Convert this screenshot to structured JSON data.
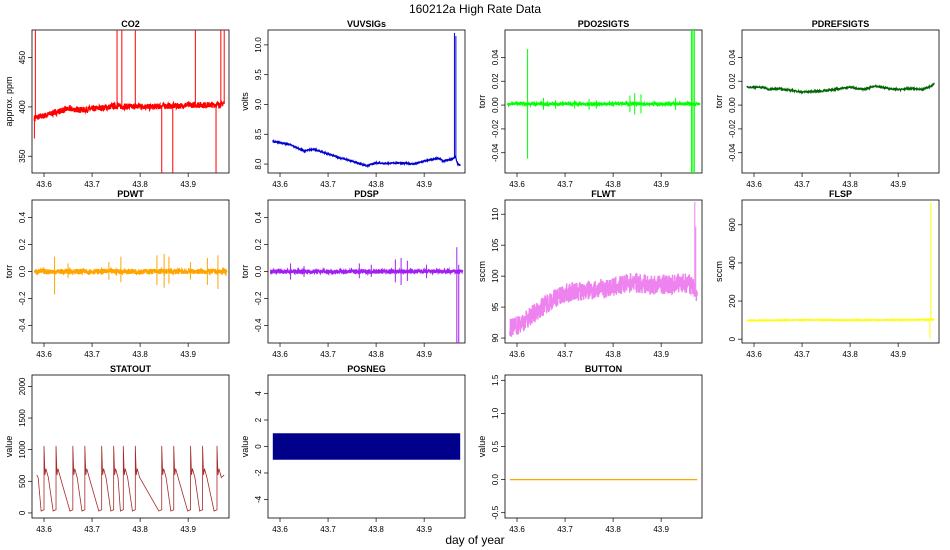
{
  "figure": {
    "title": "160212a   High Rate Data",
    "xlabel": "day of year"
  },
  "chart_data": [
    {
      "type": "line",
      "title": "CO2",
      "ylabel": "approx. ppm",
      "color": "#ff0000",
      "xlim": [
        43.575,
        43.985
      ],
      "xticks": [
        43.6,
        43.7,
        43.8,
        43.9
      ],
      "ylim": [
        333,
        478
      ],
      "yticks": [
        350,
        400,
        450
      ],
      "series": [
        {
          "x": [
            43.58,
            43.6,
            43.62,
            43.65,
            43.68,
            43.7,
            43.72,
            43.75,
            43.78,
            43.8,
            43.82,
            43.85,
            43.88,
            43.9,
            43.92,
            43.95,
            43.97,
            43.975
          ],
          "y": [
            389,
            391,
            394,
            398,
            397,
            398,
            399,
            401,
            400,
            401,
            400,
            401,
            401,
            402,
            402,
            402,
            403,
            404
          ]
        }
      ],
      "spikes": [
        {
          "x": 43.582,
          "from": 389,
          "to": 478
        },
        {
          "x": 43.58,
          "from": 389,
          "to": 368
        },
        {
          "x": 43.752,
          "from": 400,
          "to": 478
        },
        {
          "x": 43.762,
          "from": 400,
          "to": 478
        },
        {
          "x": 43.79,
          "from": 400,
          "to": 478
        },
        {
          "x": 43.845,
          "from": 400,
          "to": 333
        },
        {
          "x": 43.868,
          "from": 400,
          "to": 333
        },
        {
          "x": 43.915,
          "from": 402,
          "to": 478
        },
        {
          "x": 43.958,
          "from": 403,
          "to": 333
        },
        {
          "x": 43.968,
          "from": 403,
          "to": 478
        },
        {
          "x": 43.975,
          "from": 403,
          "to": 478
        }
      ],
      "noise": 3
    },
    {
      "type": "line",
      "title": "VUVSIGs",
      "ylabel": "volts",
      "color": "#0000cc",
      "xlim": [
        43.575,
        43.985
      ],
      "xticks": [
        43.6,
        43.7,
        43.8,
        43.9
      ],
      "ylim": [
        7.85,
        10.25
      ],
      "yticks": [
        8.0,
        8.5,
        9.0,
        9.5,
        10.0
      ],
      "series": [
        {
          "x": [
            43.585,
            43.62,
            43.65,
            43.67,
            43.7,
            43.73,
            43.75,
            43.78,
            43.8,
            43.82,
            43.85,
            43.88,
            43.9,
            43.93,
            43.94,
            43.95,
            43.96,
            43.965,
            43.97,
            43.975
          ],
          "y": [
            8.38,
            8.33,
            8.22,
            8.25,
            8.17,
            8.09,
            8.05,
            7.97,
            8.02,
            8.01,
            8.02,
            8.0,
            8.05,
            8.1,
            8.05,
            8.07,
            8.09,
            8.12,
            8.0,
            7.98
          ]
        }
      ],
      "spikes": [
        {
          "x": 43.963,
          "from": 8.1,
          "to": 10.2
        },
        {
          "x": 43.966,
          "from": 8.1,
          "to": 10.15
        }
      ],
      "noise": 0.01
    },
    {
      "type": "line",
      "title": "PDO2SIGTS",
      "ylabel": "torr",
      "color": "#00ff00",
      "xlim": [
        43.575,
        43.985
      ],
      "xticks": [
        43.6,
        43.7,
        43.8,
        43.9
      ],
      "ylim": [
        -0.057,
        0.063
      ],
      "yticks": [
        -0.04,
        -0.02,
        0.0,
        0.02,
        0.04
      ],
      "series": [
        {
          "x": [
            43.58,
            43.98
          ],
          "y": [
            0.001,
            0.001
          ]
        }
      ],
      "spikes": [
        {
          "x": 43.622,
          "from": -0.045,
          "to": 0.047
        },
        {
          "x": 43.655,
          "from": -0.004,
          "to": 0.006
        },
        {
          "x": 43.68,
          "from": -0.003,
          "to": 0.004
        },
        {
          "x": 43.72,
          "from": -0.003,
          "to": 0.004
        },
        {
          "x": 43.75,
          "from": -0.004,
          "to": 0.005
        },
        {
          "x": 43.765,
          "from": -0.003,
          "to": 0.004
        },
        {
          "x": 43.835,
          "from": -0.006,
          "to": 0.008
        },
        {
          "x": 43.845,
          "from": -0.008,
          "to": 0.01
        },
        {
          "x": 43.858,
          "from": -0.007,
          "to": 0.009
        },
        {
          "x": 43.93,
          "from": -0.004,
          "to": 0.006
        },
        {
          "x": 43.963,
          "from": -0.057,
          "to": 0.063
        },
        {
          "x": 43.966,
          "from": -0.057,
          "to": 0.063
        },
        {
          "x": 43.969,
          "from": -0.057,
          "to": 0.063
        }
      ],
      "noise": 0.0012
    },
    {
      "type": "line",
      "title": "PDREFSIGTS",
      "ylabel": "torr",
      "color": "#006400",
      "xlim": [
        43.575,
        43.985
      ],
      "xticks": [
        43.6,
        43.7,
        43.8,
        43.9
      ],
      "ylim": [
        -0.057,
        0.063
      ],
      "yticks": [
        -0.04,
        -0.02,
        0.0,
        0.02,
        0.04
      ],
      "series": [
        {
          "x": [
            43.585,
            43.62,
            43.63,
            43.65,
            43.7,
            43.75,
            43.78,
            43.8,
            43.83,
            43.85,
            43.88,
            43.9,
            43.93,
            43.95,
            43.97,
            43.975
          ],
          "y": [
            0.015,
            0.015,
            0.013,
            0.014,
            0.011,
            0.012,
            0.014,
            0.015,
            0.013,
            0.016,
            0.014,
            0.013,
            0.014,
            0.013,
            0.016,
            0.018
          ]
        }
      ],
      "spikes": [],
      "noise": 0.0006
    },
    {
      "type": "line",
      "title": "PDWT",
      "ylabel": "torr",
      "color": "#ffa500",
      "xlim": [
        43.575,
        43.985
      ],
      "xticks": [
        43.6,
        43.7,
        43.8,
        43.9
      ],
      "ylim": [
        -0.53,
        0.53
      ],
      "yticks": [
        -0.4,
        -0.2,
        0.0,
        0.2,
        0.4
      ],
      "series": [
        {
          "x": [
            43.58,
            43.98
          ],
          "y": [
            0.0,
            0.0
          ]
        }
      ],
      "spikes": [
        {
          "x": 43.622,
          "from": -0.17,
          "to": 0.11
        },
        {
          "x": 43.65,
          "from": -0.05,
          "to": 0.06
        },
        {
          "x": 43.735,
          "from": -0.06,
          "to": 0.07
        },
        {
          "x": 43.76,
          "from": -0.08,
          "to": 0.11
        },
        {
          "x": 43.835,
          "from": -0.1,
          "to": 0.12
        },
        {
          "x": 43.85,
          "from": -0.12,
          "to": 0.13
        },
        {
          "x": 43.86,
          "from": -0.09,
          "to": 0.11
        },
        {
          "x": 43.905,
          "from": -0.06,
          "to": 0.07
        },
        {
          "x": 43.94,
          "from": -0.1,
          "to": 0.1
        },
        {
          "x": 43.962,
          "from": -0.13,
          "to": 0.12
        }
      ],
      "noise": 0.02
    },
    {
      "type": "line",
      "title": "PDSP",
      "ylabel": "torr",
      "color": "#a020f0",
      "xlim": [
        43.575,
        43.985
      ],
      "xticks": [
        43.6,
        43.7,
        43.8,
        43.9
      ],
      "ylim": [
        -0.53,
        0.53
      ],
      "yticks": [
        -0.4,
        -0.2,
        0.0,
        0.2,
        0.4
      ],
      "series": [
        {
          "x": [
            43.58,
            43.98
          ],
          "y": [
            0.0,
            0.0
          ]
        }
      ],
      "spikes": [
        {
          "x": 43.622,
          "from": -0.06,
          "to": 0.06
        },
        {
          "x": 43.65,
          "from": -0.04,
          "to": 0.04
        },
        {
          "x": 43.765,
          "from": -0.05,
          "to": 0.06
        },
        {
          "x": 43.79,
          "from": -0.04,
          "to": 0.05
        },
        {
          "x": 43.84,
          "from": -0.08,
          "to": 0.09
        },
        {
          "x": 43.852,
          "from": -0.1,
          "to": 0.1
        },
        {
          "x": 43.865,
          "from": -0.07,
          "to": 0.08
        },
        {
          "x": 43.905,
          "from": -0.05,
          "to": 0.05
        },
        {
          "x": 43.968,
          "from": -0.53,
          "to": 0.18
        },
        {
          "x": 43.972,
          "from": -0.53,
          "to": 0.05
        }
      ],
      "noise": 0.016
    },
    {
      "type": "line",
      "title": "FLWT",
      "ylabel": "sccm",
      "color": "#ee82ee",
      "xlim": [
        43.575,
        43.985
      ],
      "xticks": [
        43.6,
        43.7,
        43.8,
        43.9
      ],
      "ylim": [
        89.2,
        112.3
      ],
      "yticks": [
        90,
        95,
        100,
        105,
        110
      ],
      "series": [
        {
          "x": [
            43.585,
            43.6,
            43.62,
            43.64,
            43.66,
            43.68,
            43.7,
            43.72,
            43.74,
            43.76,
            43.78,
            43.8,
            43.82,
            43.84,
            43.86,
            43.88,
            43.9,
            43.92,
            43.94,
            43.96,
            43.975
          ],
          "y": [
            91.5,
            92,
            93,
            94.3,
            95.5,
            96.5,
            97.2,
            97.5,
            97.6,
            97.8,
            98.0,
            98.2,
            98.6,
            99.0,
            98.8,
            98.5,
            98.7,
            98.6,
            99.0,
            98.8,
            97
          ]
        }
      ],
      "spikes": [
        {
          "x": 43.97,
          "from": 97,
          "to": 112
        },
        {
          "x": 43.972,
          "from": 97,
          "to": 108
        }
      ],
      "noise": 1.6
    },
    {
      "type": "line",
      "title": "FLSP",
      "ylabel": "sccm",
      "color": "#ffff00",
      "xlim": [
        43.575,
        43.985
      ],
      "xticks": [
        43.6,
        43.7,
        43.8,
        43.9
      ],
      "ylim": [
        -20,
        730
      ],
      "yticks": [
        0,
        200,
        400,
        600
      ],
      "series": [
        {
          "x": [
            43.585,
            43.7,
            43.8,
            43.9,
            43.96,
            43.975
          ],
          "y": [
            98,
            101,
            100,
            101,
            102,
            103
          ]
        }
      ],
      "spikes": [
        {
          "x": 43.968,
          "from": 100,
          "to": 715
        },
        {
          "x": 43.966,
          "from": 100,
          "to": 5
        }
      ],
      "noise": 1.5
    },
    {
      "type": "line",
      "title": "STATOUT",
      "ylabel": "value",
      "color": "#a52a2a",
      "xlim": [
        43.575,
        43.985
      ],
      "xticks": [
        43.6,
        43.7,
        43.8,
        43.9
      ],
      "ylim": [
        -80,
        2180
      ],
      "yticks": [
        0,
        500,
        1000,
        1500,
        2000
      ],
      "series": [],
      "spikes": [],
      "noise": 0,
      "pulses": [
        43.6,
        43.625,
        43.66,
        43.685,
        43.72,
        43.745,
        43.765,
        43.79,
        43.845,
        43.87,
        43.905,
        43.93,
        43.96
      ]
    },
    {
      "type": "area",
      "title": "POSNEG",
      "ylabel": "value",
      "color": "#00008b",
      "xlim": [
        43.575,
        43.985
      ],
      "xticks": [
        43.6,
        43.7,
        43.8,
        43.9
      ],
      "ylim": [
        -5.4,
        5.4
      ],
      "yticks": [
        -4,
        -2,
        0,
        2,
        4
      ],
      "series": [
        {
          "x": [
            43.585,
            43.975
          ],
          "y": [
            -1,
            1
          ]
        }
      ],
      "spikes": [],
      "noise": 0
    },
    {
      "type": "line",
      "title": "BUTTON",
      "ylabel": "value",
      "color": "#ffa500",
      "xlim": [
        43.575,
        43.985
      ],
      "xticks": [
        43.6,
        43.7,
        43.8,
        43.9
      ],
      "ylim": [
        -0.58,
        1.58
      ],
      "yticks": [
        -0.5,
        0.0,
        0.5,
        1.0,
        1.5
      ],
      "series": [
        {
          "x": [
            43.585,
            43.975
          ],
          "y": [
            0,
            0
          ]
        }
      ],
      "spikes": [],
      "noise": 0
    }
  ]
}
